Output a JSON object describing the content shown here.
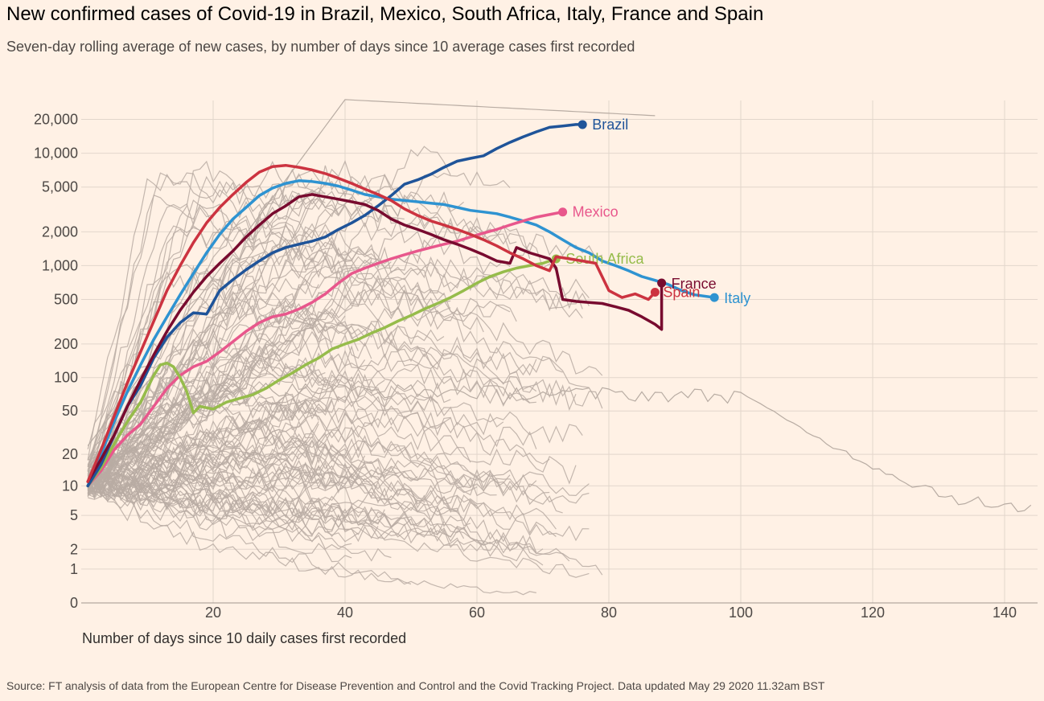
{
  "title": "New confirmed cases of Covid-19 in Brazil, Mexico, South Africa, Italy, France and Spain",
  "subtitle": "Seven-day rolling average of new cases, by number of days since 10 average cases first recorded",
  "source": "Source: FT analysis of data from the European Centre for Disease Prevention and Control and the Covid Tracking Project. Data updated May 29 2020 11.32am BST",
  "colors": {
    "background": "#fff1e5",
    "grid": "#e2d6cc",
    "background_lines": "#b8aca3",
    "text": "#4d4845"
  },
  "chart_data": {
    "type": "line",
    "y_scale": "log",
    "xlabel": "Number of days since 10 daily cases first recorded",
    "ylabel": "",
    "xlim": [
      0,
      145
    ],
    "x_ticks": [
      20,
      40,
      60,
      80,
      100,
      120,
      140
    ],
    "x_tick_labels": [
      "20",
      "40",
      "60",
      "80",
      "100",
      "120",
      "140"
    ],
    "y_ticks": [
      0,
      1,
      2,
      5,
      10,
      20,
      50,
      100,
      200,
      500,
      1000,
      2000,
      5000,
      10000,
      20000
    ],
    "y_tick_labels": [
      "0",
      "1",
      "2",
      "5",
      "10",
      "20",
      "50",
      "100",
      "200",
      "500",
      "1,000",
      "2,000",
      "5,000",
      "10,000",
      "20,000"
    ],
    "grid": true,
    "legend": "direct labels at line ends",
    "series": [
      {
        "name": "Brazil",
        "color": "#1f5499",
        "points": [
          [
            1,
            10
          ],
          [
            3,
            16
          ],
          [
            5,
            30
          ],
          [
            7,
            55
          ],
          [
            9,
            85
          ],
          [
            11,
            150
          ],
          [
            13,
            230
          ],
          [
            15,
            310
          ],
          [
            17,
            380
          ],
          [
            19,
            370
          ],
          [
            21,
            600
          ],
          [
            23,
            750
          ],
          [
            25,
            920
          ],
          [
            27,
            1100
          ],
          [
            29,
            1300
          ],
          [
            31,
            1450
          ],
          [
            33,
            1550
          ],
          [
            35,
            1650
          ],
          [
            37,
            1800
          ],
          [
            39,
            2100
          ],
          [
            41,
            2400
          ],
          [
            43,
            2800
          ],
          [
            45,
            3400
          ],
          [
            47,
            4200
          ],
          [
            49,
            5300
          ],
          [
            51,
            5800
          ],
          [
            53,
            6500
          ],
          [
            55,
            7500
          ],
          [
            57,
            8500
          ],
          [
            59,
            9000
          ],
          [
            61,
            9500
          ],
          [
            63,
            11000
          ],
          [
            65,
            12500
          ],
          [
            67,
            14000
          ],
          [
            69,
            15500
          ],
          [
            71,
            17000
          ],
          [
            73,
            17500
          ],
          [
            75,
            18000
          ],
          [
            76,
            18000
          ]
        ]
      },
      {
        "name": "Mexico",
        "color": "#e8578c",
        "points": [
          [
            1,
            10
          ],
          [
            3,
            14
          ],
          [
            5,
            22
          ],
          [
            7,
            30
          ],
          [
            9,
            38
          ],
          [
            11,
            55
          ],
          [
            13,
            80
          ],
          [
            15,
            105
          ],
          [
            17,
            125
          ],
          [
            19,
            140
          ],
          [
            21,
            170
          ],
          [
            23,
            210
          ],
          [
            25,
            260
          ],
          [
            27,
            310
          ],
          [
            29,
            350
          ],
          [
            31,
            370
          ],
          [
            33,
            410
          ],
          [
            35,
            470
          ],
          [
            37,
            560
          ],
          [
            39,
            700
          ],
          [
            41,
            850
          ],
          [
            43,
            950
          ],
          [
            45,
            1050
          ],
          [
            47,
            1150
          ],
          [
            49,
            1250
          ],
          [
            51,
            1350
          ],
          [
            53,
            1450
          ],
          [
            55,
            1550
          ],
          [
            57,
            1650
          ],
          [
            59,
            1800
          ],
          [
            61,
            1950
          ],
          [
            63,
            2100
          ],
          [
            65,
            2300
          ],
          [
            67,
            2500
          ],
          [
            69,
            2700
          ],
          [
            71,
            2850
          ],
          [
            73,
            3000
          ]
        ]
      },
      {
        "name": "South Africa",
        "color": "#96bc4b",
        "points": [
          [
            1,
            10
          ],
          [
            3,
            15
          ],
          [
            5,
            25
          ],
          [
            7,
            40
          ],
          [
            9,
            60
          ],
          [
            11,
            105
          ],
          [
            12,
            130
          ],
          [
            13,
            135
          ],
          [
            14,
            125
          ],
          [
            15,
            100
          ],
          [
            16,
            75
          ],
          [
            17,
            48
          ],
          [
            18,
            55
          ],
          [
            20,
            52
          ],
          [
            22,
            60
          ],
          [
            24,
            65
          ],
          [
            26,
            70
          ],
          [
            28,
            80
          ],
          [
            30,
            95
          ],
          [
            32,
            110
          ],
          [
            34,
            130
          ],
          [
            36,
            150
          ],
          [
            38,
            180
          ],
          [
            40,
            200
          ],
          [
            42,
            220
          ],
          [
            44,
            250
          ],
          [
            46,
            280
          ],
          [
            48,
            320
          ],
          [
            50,
            360
          ],
          [
            52,
            410
          ],
          [
            54,
            460
          ],
          [
            56,
            520
          ],
          [
            58,
            600
          ],
          [
            60,
            700
          ],
          [
            62,
            800
          ],
          [
            64,
            880
          ],
          [
            66,
            950
          ],
          [
            68,
            1000
          ],
          [
            70,
            1050
          ],
          [
            72,
            1150
          ]
        ]
      },
      {
        "name": "Italy",
        "color": "#2e93d1",
        "points": [
          [
            1,
            10
          ],
          [
            3,
            20
          ],
          [
            5,
            40
          ],
          [
            7,
            75
          ],
          [
            9,
            130
          ],
          [
            11,
            220
          ],
          [
            13,
            350
          ],
          [
            15,
            550
          ],
          [
            17,
            850
          ],
          [
            19,
            1300
          ],
          [
            21,
            1900
          ],
          [
            23,
            2600
          ],
          [
            25,
            3300
          ],
          [
            27,
            4200
          ],
          [
            29,
            4900
          ],
          [
            31,
            5400
          ],
          [
            33,
            5700
          ],
          [
            35,
            5600
          ],
          [
            37,
            5400
          ],
          [
            39,
            5100
          ],
          [
            41,
            4700
          ],
          [
            43,
            4300
          ],
          [
            45,
            4100
          ],
          [
            47,
            3900
          ],
          [
            49,
            3800
          ],
          [
            51,
            3700
          ],
          [
            53,
            3600
          ],
          [
            55,
            3500
          ],
          [
            57,
            3300
          ],
          [
            59,
            3100
          ],
          [
            61,
            3000
          ],
          [
            63,
            2900
          ],
          [
            65,
            2700
          ],
          [
            67,
            2500
          ],
          [
            69,
            2300
          ],
          [
            71,
            2000
          ],
          [
            73,
            1700
          ],
          [
            75,
            1450
          ],
          [
            77,
            1300
          ],
          [
            79,
            1100
          ],
          [
            81,
            1000
          ],
          [
            83,
            900
          ],
          [
            85,
            800
          ],
          [
            87,
            740
          ],
          [
            89,
            680
          ],
          [
            91,
            600
          ],
          [
            93,
            550
          ],
          [
            96,
            520
          ]
        ]
      },
      {
        "name": "France",
        "color": "#780b2f",
        "points": [
          [
            1,
            11
          ],
          [
            3,
            18
          ],
          [
            5,
            30
          ],
          [
            7,
            55
          ],
          [
            9,
            95
          ],
          [
            11,
            160
          ],
          [
            13,
            260
          ],
          [
            15,
            400
          ],
          [
            17,
            580
          ],
          [
            19,
            800
          ],
          [
            21,
            1050
          ],
          [
            23,
            1350
          ],
          [
            25,
            1800
          ],
          [
            27,
            2300
          ],
          [
            29,
            2900
          ],
          [
            31,
            3400
          ],
          [
            33,
            4100
          ],
          [
            35,
            4300
          ],
          [
            37,
            4100
          ],
          [
            39,
            3900
          ],
          [
            41,
            3700
          ],
          [
            43,
            3500
          ],
          [
            45,
            3100
          ],
          [
            47,
            2600
          ],
          [
            49,
            2300
          ],
          [
            51,
            2100
          ],
          [
            53,
            1900
          ],
          [
            55,
            1700
          ],
          [
            57,
            1550
          ],
          [
            59,
            1400
          ],
          [
            61,
            1250
          ],
          [
            63,
            1100
          ],
          [
            65,
            1050
          ],
          [
            66,
            1450
          ],
          [
            68,
            1300
          ],
          [
            70,
            1200
          ],
          [
            71,
            1150
          ],
          [
            72,
            950
          ],
          [
            73,
            500
          ],
          [
            75,
            480
          ],
          [
            77,
            470
          ],
          [
            79,
            460
          ],
          [
            81,
            430
          ],
          [
            83,
            400
          ],
          [
            85,
            350
          ],
          [
            87,
            300
          ],
          [
            88,
            270
          ],
          [
            88,
            700
          ]
        ]
      },
      {
        "name": "Spain",
        "color": "#cc3340",
        "points": [
          [
            1,
            11
          ],
          [
            3,
            22
          ],
          [
            5,
            45
          ],
          [
            7,
            90
          ],
          [
            9,
            170
          ],
          [
            11,
            320
          ],
          [
            13,
            600
          ],
          [
            15,
            1000
          ],
          [
            17,
            1600
          ],
          [
            19,
            2400
          ],
          [
            21,
            3300
          ],
          [
            23,
            4300
          ],
          [
            25,
            5500
          ],
          [
            27,
            6800
          ],
          [
            29,
            7600
          ],
          [
            31,
            7800
          ],
          [
            33,
            7500
          ],
          [
            35,
            7100
          ],
          [
            37,
            6600
          ],
          [
            39,
            6000
          ],
          [
            41,
            5400
          ],
          [
            43,
            4800
          ],
          [
            45,
            4300
          ],
          [
            47,
            3800
          ],
          [
            49,
            3200
          ],
          [
            51,
            2800
          ],
          [
            53,
            2500
          ],
          [
            55,
            2300
          ],
          [
            57,
            2100
          ],
          [
            59,
            1900
          ],
          [
            61,
            1700
          ],
          [
            63,
            1500
          ],
          [
            65,
            1300
          ],
          [
            67,
            1150
          ],
          [
            69,
            1000
          ],
          [
            71,
            900
          ],
          [
            72,
            1200
          ],
          [
            74,
            1150
          ],
          [
            76,
            1100
          ],
          [
            78,
            1050
          ],
          [
            80,
            600
          ],
          [
            82,
            520
          ],
          [
            84,
            560
          ],
          [
            86,
            500
          ],
          [
            87,
            580
          ]
        ]
      }
    ]
  },
  "labels": {
    "brazil": "Brazil",
    "mexico": "Mexico",
    "south_africa": "South Africa",
    "italy": "Italy",
    "france": "France",
    "spain": "Spain"
  }
}
